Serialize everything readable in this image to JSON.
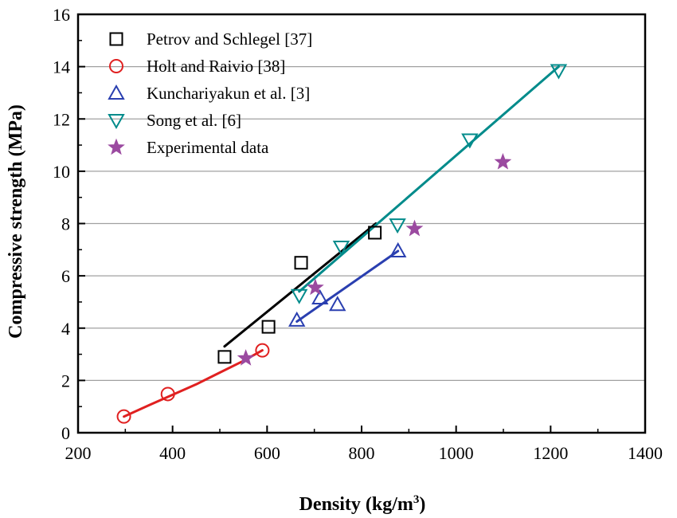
{
  "chart_data": {
    "type": "scatter",
    "title": "",
    "xlabel": "Density (kg/m",
    "xlabel_sup": "3",
    "xlabel_close": ")",
    "ylabel": "Compressive strength (MPa)",
    "xlim": [
      200,
      1400
    ],
    "ylim": [
      0,
      16
    ],
    "xticks": [
      200,
      400,
      600,
      800,
      1000,
      1200,
      1400
    ],
    "yticks": [
      0,
      2,
      4,
      6,
      8,
      10,
      12,
      14,
      16
    ],
    "grid": "horizontal",
    "legend_position": "top-left",
    "series": [
      {
        "name": "Petrov and Schlegel [37]",
        "marker": "square",
        "color": "#000000",
        "points": [
          [
            510,
            2.9
          ],
          [
            603,
            4.05
          ],
          [
            672,
            6.5
          ],
          [
            828,
            7.65
          ]
        ],
        "fit": [
          [
            510,
            3.3
          ],
          [
            830,
            8.0
          ]
        ]
      },
      {
        "name": "Holt and Raivio [38]",
        "marker": "circle",
        "color": "#e02020",
        "points": [
          [
            297,
            0.62
          ],
          [
            390,
            1.48
          ],
          [
            590,
            3.15
          ]
        ],
        "fit": [
          [
            297,
            0.62
          ],
          [
            350,
            1.05
          ],
          [
            400,
            1.45
          ],
          [
            450,
            1.85
          ],
          [
            500,
            2.3
          ],
          [
            550,
            2.75
          ],
          [
            590,
            3.15
          ]
        ]
      },
      {
        "name": "Kunchariyakun et al. [3]",
        "marker": "triangle-up",
        "color": "#2a3fb0",
        "points": [
          [
            663,
            4.3
          ],
          [
            712,
            5.15
          ],
          [
            749,
            4.9
          ],
          [
            877,
            6.95
          ]
        ],
        "fit": [
          [
            663,
            4.25
          ],
          [
            877,
            6.95
          ]
        ]
      },
      {
        "name": "Song et al. [6]",
        "marker": "triangle-down",
        "color": "#008b8b",
        "points": [
          [
            668,
            5.25
          ],
          [
            757,
            7.1
          ],
          [
            876,
            7.95
          ],
          [
            1029,
            11.2
          ],
          [
            1217,
            13.85
          ]
        ],
        "fit": [
          [
            668,
            5.4
          ],
          [
            1217,
            14.0
          ]
        ]
      },
      {
        "name": "Experimental data",
        "marker": "star",
        "color": "#9b4aa0",
        "points": [
          [
            555,
            2.85
          ],
          [
            702,
            5.55
          ],
          [
            912,
            7.8
          ],
          [
            1099,
            10.35
          ]
        ]
      }
    ]
  }
}
